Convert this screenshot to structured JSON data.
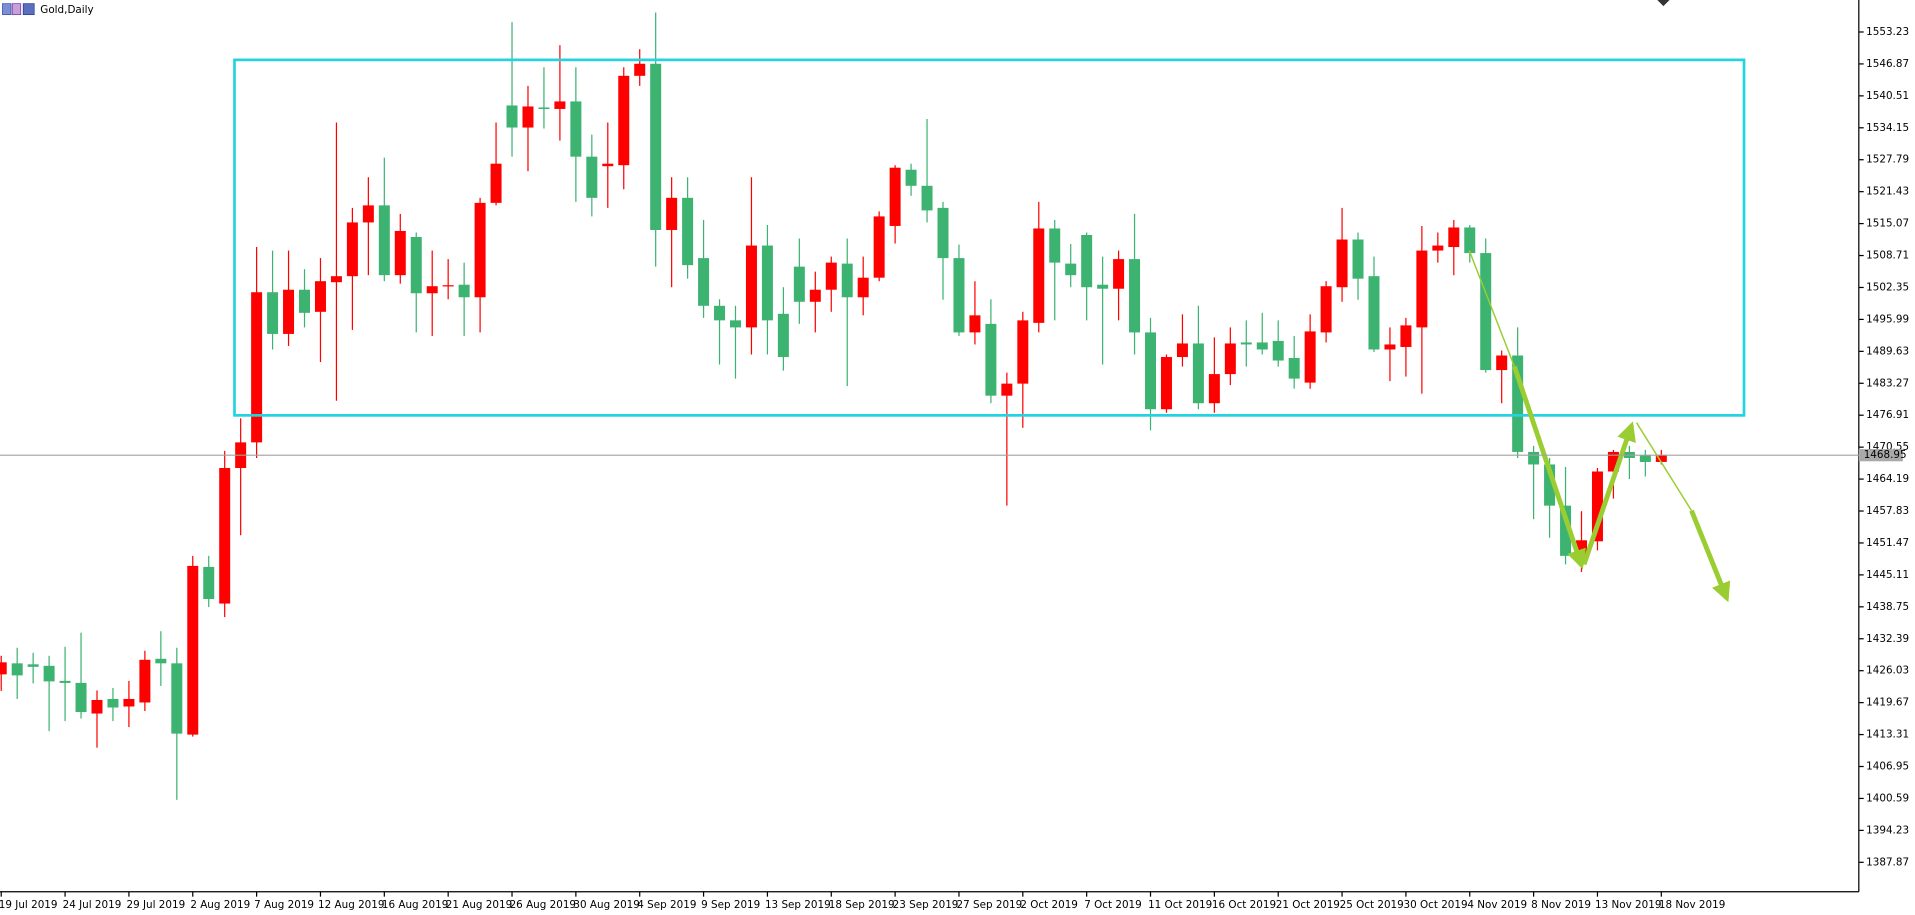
{
  "chart_data": {
    "type": "candlestick",
    "title": "Gold,Daily",
    "categories": [
      "19 Jul 2019",
      null,
      null,
      null,
      "24 Jul 2019",
      null,
      null,
      null,
      "29 Jul 2019",
      null,
      null,
      null,
      "2 Aug 2019",
      null,
      null,
      null,
      "7 Aug 2019",
      null,
      null,
      null,
      "12 Aug 2019",
      null,
      null,
      null,
      "16 Aug 2019",
      null,
      null,
      null,
      "21 Aug 2019",
      null,
      null,
      null,
      "26 Aug 2019",
      null,
      null,
      null,
      "30 Aug 2019",
      null,
      null,
      null,
      "4 Sep 2019",
      null,
      null,
      null,
      "9 Sep 2019",
      null,
      null,
      null,
      "13 Sep 2019",
      null,
      null,
      null,
      "18 Sep 2019",
      null,
      null,
      null,
      "23 Sep 2019",
      null,
      null,
      null,
      "27 Sep 2019",
      null,
      null,
      null,
      "2 Oct 2019",
      null,
      null,
      null,
      "7 Oct 2019",
      null,
      null,
      null,
      "11 Oct 2019",
      null,
      null,
      null,
      "16 Oct 2019",
      null,
      null,
      null,
      "21 Oct 2019",
      null,
      null,
      null,
      "25 Oct 2019",
      null,
      null,
      null,
      "30 Oct 2019",
      null,
      null,
      null,
      "4 Nov 2019",
      null,
      null,
      null,
      "8 Nov 2019",
      null,
      null,
      null,
      "13 Nov 2019",
      null,
      null,
      null,
      "18 Nov 2019"
    ],
    "open": [
      1425.3,
      1427.5,
      1427.3,
      1427,
      1424,
      1423.6,
      1417.5,
      1420.4,
      1418.9,
      1419.7,
      1428.4,
      1427.5,
      1413.3,
      1446.7,
      1439.4,
      1466.4,
      1471.5,
      1501.4,
      1493.1,
      1501.9,
      1497.5,
      1503.4,
      1504.6,
      1515.3,
      1518.7,
      1504.8,
      1512.4,
      1501.2,
      1502.6,
      1502.9,
      1500.4,
      1519.2,
      1538.6,
      1534.2,
      1538.2,
      1537.9,
      1539.4,
      1528.4,
      1526.5,
      1526.7,
      1544.5,
      1546.9,
      1513.8,
      1520.2,
      1508.2,
      1498.7,
      1495.8,
      1494.4,
      1510.7,
      1497.1,
      1506.5,
      1499.5,
      1501.9,
      1507.1,
      1500.4,
      1504.3,
      1514.6,
      1525.8,
      1522.6,
      1518.2,
      1508.2,
      1493.4,
      1495.1,
      1480.8,
      1483.2,
      1495.3,
      1514.1,
      1507.1,
      1512.8,
      1502.9,
      1502.1,
      1508,
      1493.4,
      1478.1,
      1488.5,
      1491.2,
      1479.3,
      1485.1,
      1491.4,
      1491.4,
      1491.7,
      1488.3,
      1483.4,
      1493.4,
      1502.4,
      1511.9,
      1504.6,
      1490,
      1490.5,
      1494.4,
      1509.7,
      1510.4,
      1514.3,
      1509.2,
      1485.9,
      1488.8,
      1469.6,
      1467.1,
      1458.9,
      1448.9,
      1451.8,
      1465.7,
      1469.6,
      1468.9,
      1467.6
    ],
    "high": [
      1429,
      1430.6,
      1429.6,
      1429,
      1430.8,
      1433.6,
      1422.1,
      1422.6,
      1424,
      1430,
      1433.9,
      1430.6,
      1448.9,
      1448.9,
      1469.8,
      1476.3,
      1510.4,
      1509.7,
      1509.7,
      1506,
      1508.2,
      1535.2,
      1518.2,
      1524.3,
      1528.2,
      1517,
      1513.3,
      1509.7,
      1508,
      1507.3,
      1520.2,
      1535.2,
      1555.2,
      1542.5,
      1546.2,
      1550.6,
      1546.2,
      1532.8,
      1535.2,
      1546.2,
      1549.8,
      1557.1,
      1524.3,
      1524.3,
      1515.8,
      1500,
      1498.7,
      1524.3,
      1514.8,
      1502.4,
      1512.1,
      1505.5,
      1508.5,
      1512.1,
      1508.5,
      1517.5,
      1526.7,
      1527,
      1535.9,
      1519.4,
      1510.9,
      1503.6,
      1500,
      1485.4,
      1497.5,
      1519.4,
      1515.8,
      1511,
      1513.3,
      1508.5,
      1509.7,
      1517,
      1496.3,
      1489,
      1497,
      1498.7,
      1492.4,
      1494.4,
      1495.8,
      1497.3,
      1495.8,
      1492.7,
      1497,
      1503.6,
      1518.2,
      1513.3,
      1508.5,
      1494.4,
      1496.3,
      1514.6,
      1513.3,
      1515.8,
      1514.8,
      1512.1,
      1489.8,
      1494.4,
      1470.8,
      1468.4,
      1466.6,
      1457.8,
      1466.4,
      1470,
      1470.8,
      1470,
      1470
    ],
    "low": [
      1422,
      1420.4,
      1423.5,
      1414,
      1416,
      1416.5,
      1410.7,
      1416,
      1414.8,
      1418,
      1423,
      1400.3,
      1412.9,
      1438.7,
      1436.7,
      1453,
      1468.4,
      1490,
      1490.7,
      1494.4,
      1487.5,
      1479.8,
      1493.9,
      1504.8,
      1503.6,
      1503.1,
      1493.4,
      1492.7,
      1500,
      1492.7,
      1493.4,
      1518.7,
      1528.4,
      1525.5,
      1534,
      1531.6,
      1519.4,
      1516.5,
      1518.2,
      1521.9,
      1542.5,
      1506.5,
      1502.4,
      1504.1,
      1496.3,
      1487,
      1484.2,
      1489,
      1489,
      1485.8,
      1495.1,
      1493.4,
      1497.5,
      1482.7,
      1496.8,
      1503.6,
      1511.1,
      1520.6,
      1515.3,
      1499.9,
      1492.7,
      1491,
      1479.3,
      1458.9,
      1474.4,
      1493.4,
      1495.8,
      1502.4,
      1495.8,
      1487,
      1495.8,
      1489,
      1473.9,
      1477.4,
      1486.6,
      1478.1,
      1477.4,
      1482.9,
      1486.6,
      1489,
      1486.6,
      1482.2,
      1482.2,
      1491.4,
      1499.5,
      1499.9,
      1489.5,
      1483.7,
      1484.6,
      1481.2,
      1507.3,
      1504.8,
      1507.3,
      1485.4,
      1479.3,
      1468.4,
      1456.2,
      1452.5,
      1447.2,
      1445.7,
      1450,
      1460.3,
      1464.2,
      1464.7,
      1467.1
    ],
    "close": [
      1427.7,
      1425.1,
      1426.8,
      1423.9,
      1423.6,
      1417.8,
      1420.2,
      1418.7,
      1420.4,
      1428.2,
      1427.5,
      1413.5,
      1446.9,
      1440.3,
      1466.4,
      1471.5,
      1501.4,
      1493.1,
      1501.9,
      1497.3,
      1503.6,
      1504.6,
      1515.3,
      1518.7,
      1504.8,
      1513.6,
      1501.2,
      1502.6,
      1502.8,
      1500.4,
      1519.2,
      1527,
      1534.2,
      1538.4,
      1537.9,
      1539.4,
      1528.4,
      1520.2,
      1527,
      1544.5,
      1546.9,
      1513.8,
      1520.2,
      1506.8,
      1498.7,
      1495.8,
      1494.4,
      1510.7,
      1495.8,
      1488.5,
      1499.5,
      1501.9,
      1507.3,
      1500.4,
      1504.3,
      1516.5,
      1526.2,
      1522.6,
      1517.7,
      1508.2,
      1493.4,
      1496.8,
      1480.8,
      1483.2,
      1495.8,
      1514.1,
      1507.3,
      1504.8,
      1502.4,
      1502.1,
      1508,
      1493.4,
      1478.1,
      1488.5,
      1491.2,
      1479.3,
      1485.1,
      1491.2,
      1491,
      1490,
      1487.8,
      1484.2,
      1493.6,
      1502.6,
      1511.9,
      1504.1,
      1490,
      1491,
      1494.8,
      1509.7,
      1510.7,
      1514.3,
      1509.2,
      1485.9,
      1488.8,
      1469.6,
      1467.1,
      1458.9,
      1448.9,
      1452,
      1465.7,
      1469.6,
      1468.4,
      1467.6,
      1468.95
    ],
    "up_color": "#ff0000",
    "down_color": "#3cb371",
    "last_price": 1468.95,
    "ylim": [
      1382.0,
      1559.6
    ],
    "yticks": [
      1553.23,
      1546.87,
      1540.51,
      1534.15,
      1527.79,
      1521.43,
      1515.07,
      1508.71,
      1502.35,
      1495.99,
      1489.63,
      1483.27,
      1476.91,
      1470.55,
      1464.19,
      1457.83,
      1451.47,
      1445.11,
      1438.75,
      1432.39,
      1426.03,
      1419.67,
      1413.31,
      1406.95,
      1400.59,
      1394.23,
      1387.87
    ]
  }
}
